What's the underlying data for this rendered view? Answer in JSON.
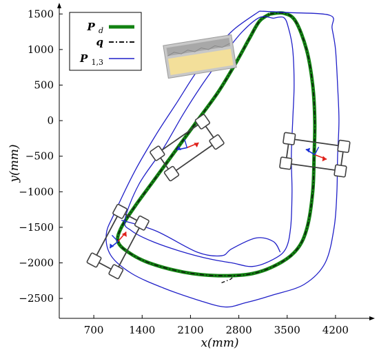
{
  "chart_data": {
    "type": "line",
    "title": "",
    "xlabel": "x(mm)",
    "ylabel": "y(mm)",
    "xlim": [
      200,
      4650
    ],
    "ylim": [
      -2780,
      1580
    ],
    "xticks": [
      700,
      1400,
      2100,
      2800,
      3500,
      4200
    ],
    "yticks": [
      1500,
      1000,
      500,
      0,
      -500,
      -1000,
      -1500,
      -2000,
      -2500
    ],
    "xtick_labels": [
      "700",
      "1400",
      "2100",
      "2800",
      "3500",
      "4200"
    ],
    "ytick_labels": [
      "1500",
      "1000",
      "500",
      "0",
      "−500",
      "−1000",
      "−1500",
      "−2000",
      "−2500"
    ],
    "grid": false,
    "legend_position": "top-left",
    "legend": [
      {
        "label": "P_d",
        "style": "thick green solid"
      },
      {
        "label": "q",
        "style": "black dash-dot"
      },
      {
        "label": "P_1,3",
        "style": "thin blue solid"
      }
    ],
    "colors": {
      "desired": "#128212",
      "actual": "#111111",
      "boundary": "#1f1fc8",
      "vehicle": "#404040",
      "arrow_red": "#e0221b",
      "arrow_blue": "#1b2fd6"
    },
    "series": [
      {
        "name": "P_d",
        "points": [
          [
            3250,
            1500
          ],
          [
            3450,
            1510
          ],
          [
            3620,
            1400
          ],
          [
            3780,
            1000
          ],
          [
            3870,
            500
          ],
          [
            3900,
            0
          ],
          [
            3890,
            -500
          ],
          [
            3870,
            -1000
          ],
          [
            3790,
            -1500
          ],
          [
            3650,
            -1800
          ],
          [
            3400,
            -2000
          ],
          [
            3000,
            -2150
          ],
          [
            2500,
            -2180
          ],
          [
            2000,
            -2130
          ],
          [
            1500,
            -2000
          ],
          [
            1200,
            -1850
          ],
          [
            1050,
            -1700
          ],
          [
            1100,
            -1500
          ],
          [
            1300,
            -1200
          ],
          [
            1600,
            -800
          ],
          [
            1900,
            -400
          ],
          [
            2200,
            0
          ],
          [
            2500,
            400
          ],
          [
            2750,
            800
          ],
          [
            2950,
            1150
          ],
          [
            3100,
            1400
          ],
          [
            3250,
            1500
          ]
        ]
      },
      {
        "name": "q",
        "points": [
          [
            3250,
            1500
          ],
          [
            3450,
            1510
          ],
          [
            3620,
            1400
          ],
          [
            3780,
            1000
          ],
          [
            3870,
            500
          ],
          [
            3900,
            0
          ],
          [
            3890,
            -500
          ],
          [
            3870,
            -1000
          ],
          [
            3790,
            -1500
          ],
          [
            3650,
            -1800
          ],
          [
            3400,
            -2000
          ],
          [
            3000,
            -2150
          ],
          [
            2500,
            -2180
          ],
          [
            2000,
            -2130
          ],
          [
            1500,
            -2000
          ],
          [
            1200,
            -1850
          ],
          [
            1050,
            -1700
          ],
          [
            1100,
            -1500
          ],
          [
            1300,
            -1200
          ],
          [
            1600,
            -800
          ],
          [
            1900,
            -400
          ],
          [
            2200,
            0
          ],
          [
            2500,
            400
          ],
          [
            2750,
            800
          ],
          [
            2950,
            1150
          ],
          [
            3100,
            1400
          ],
          [
            3250,
            1500
          ]
        ]
      },
      {
        "name": "P_1,3 outer",
        "points": [
          [
            3100,
            1540
          ],
          [
            3520,
            1520
          ],
          [
            4120,
            1480
          ],
          [
            4150,
            1300
          ],
          [
            4200,
            1000
          ],
          [
            4230,
            500
          ],
          [
            4250,
            0
          ],
          [
            4230,
            -500
          ],
          [
            4220,
            -1000
          ],
          [
            4180,
            -1500
          ],
          [
            4050,
            -2000
          ],
          [
            3750,
            -2300
          ],
          [
            3300,
            -2450
          ],
          [
            2900,
            -2560
          ],
          [
            2600,
            -2620
          ],
          [
            2200,
            -2520
          ],
          [
            1700,
            -2350
          ],
          [
            1250,
            -2150
          ],
          [
            950,
            -1900
          ],
          [
            880,
            -1600
          ],
          [
            1000,
            -1300
          ],
          [
            1300,
            -700
          ],
          [
            1600,
            -200
          ],
          [
            1900,
            250
          ],
          [
            2200,
            700
          ],
          [
            2500,
            1050
          ],
          [
            2750,
            1300
          ],
          [
            3100,
            1540
          ]
        ]
      },
      {
        "name": "P_1,3 inner",
        "points": [
          [
            3300,
            1440
          ],
          [
            3450,
            1450
          ],
          [
            3520,
            1300
          ],
          [
            3580,
            1000
          ],
          [
            3600,
            500
          ],
          [
            3580,
            0
          ],
          [
            3560,
            -500
          ],
          [
            3570,
            -1000
          ],
          [
            3550,
            -1500
          ],
          [
            3480,
            -1800
          ],
          [
            3300,
            -1950
          ],
          [
            3000,
            -2050
          ],
          [
            2700,
            -2000
          ],
          [
            2400,
            -1950
          ],
          [
            2000,
            -1850
          ],
          [
            1550,
            -1700
          ],
          [
            1250,
            -1550
          ],
          [
            1150,
            -1400
          ],
          [
            1350,
            -900
          ],
          [
            1700,
            -400
          ],
          [
            2000,
            100
          ],
          [
            2300,
            550
          ],
          [
            2600,
            950
          ],
          [
            2850,
            1250
          ],
          [
            3100,
            1450
          ],
          [
            3300,
            1440
          ]
        ]
      },
      {
        "name": "P_1,3 connector",
        "points": [
          [
            1100,
            -1400
          ],
          [
            1600,
            -1550
          ],
          [
            2200,
            -1850
          ],
          [
            2550,
            -1900
          ],
          [
            2700,
            -1800
          ],
          [
            3050,
            -1650
          ],
          [
            3300,
            -1700
          ],
          [
            3400,
            -1850
          ]
        ]
      }
    ],
    "vehicles": [
      {
        "cx": 1050,
        "cy": -1700,
        "heading_deg": -62
      },
      {
        "cx": 2050,
        "cy": -380,
        "heading_deg": -35
      },
      {
        "cx": 3900,
        "cy": -480,
        "heading_deg": 8
      }
    ]
  }
}
